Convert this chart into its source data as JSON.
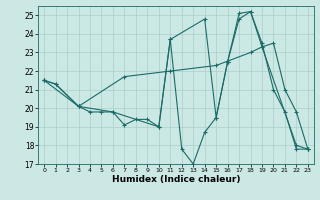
{
  "xlabel": "Humidex (Indice chaleur)",
  "bg_color": "#cce8e5",
  "line_color": "#1a6b66",
  "grid_color": "#aacfcc",
  "xlim": [
    -0.5,
    23.5
  ],
  "ylim": [
    17,
    25.5
  ],
  "yticks": [
    17,
    18,
    19,
    20,
    21,
    22,
    23,
    24,
    25
  ],
  "xticks": [
    0,
    1,
    2,
    3,
    4,
    5,
    6,
    7,
    8,
    9,
    10,
    11,
    12,
    13,
    14,
    15,
    16,
    17,
    18,
    19,
    20,
    21,
    22,
    23
  ],
  "line1_x": [
    0,
    1,
    3,
    4,
    5,
    6,
    7,
    8,
    9,
    10,
    11,
    12,
    13,
    14,
    15,
    16,
    17,
    18,
    19,
    20,
    21,
    22,
    23
  ],
  "line1_y": [
    21.5,
    21.3,
    20.1,
    19.8,
    19.8,
    19.8,
    19.1,
    19.4,
    19.4,
    19.0,
    23.7,
    17.8,
    17.0,
    18.7,
    19.5,
    22.5,
    25.1,
    25.2,
    23.5,
    21.0,
    19.8,
    17.8,
    17.8
  ],
  "line2_x": [
    0,
    1,
    3,
    6,
    10,
    11,
    14,
    15,
    16,
    17,
    18,
    19,
    20,
    21,
    22,
    23
  ],
  "line2_y": [
    21.5,
    21.3,
    20.1,
    19.8,
    19.0,
    23.7,
    24.8,
    19.5,
    22.5,
    24.8,
    25.2,
    23.3,
    23.5,
    21.0,
    19.8,
    17.8
  ],
  "line3_x": [
    0,
    3,
    7,
    11,
    15,
    18,
    19,
    22,
    23
  ],
  "line3_y": [
    21.5,
    20.1,
    21.7,
    22.0,
    22.3,
    23.0,
    23.3,
    18.0,
    17.8
  ]
}
